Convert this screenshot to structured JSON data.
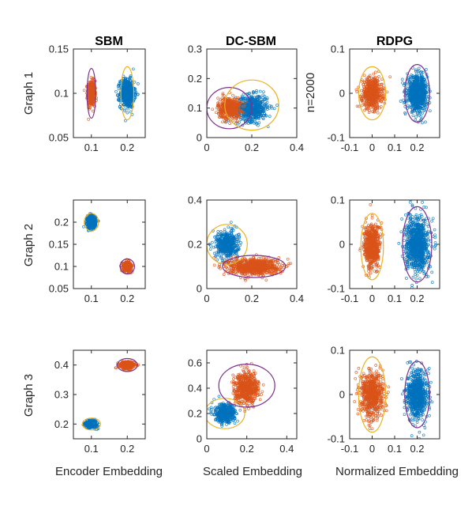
{
  "colors": {
    "blue": "#0072BD",
    "orange": "#D95319",
    "yellow": "#EDB120",
    "purple": "#7E2F8E",
    "axis": "#262626"
  },
  "column_titles": [
    "SBM",
    "DC-SBM",
    "RDPG"
  ],
  "row_labels": [
    "Graph 1",
    "Graph 2",
    "Graph 3"
  ],
  "x_labels": [
    "Encoder Embedding",
    "Scaled Embedding",
    "Normalized Embedding"
  ],
  "annotation": "n=2000",
  "chart_data": [
    {
      "id": "g1-sbm",
      "type": "scatter",
      "row": 0,
      "col": 0,
      "xlim": [
        0.05,
        0.25
      ],
      "ylim": [
        0.05,
        0.15
      ],
      "xticks": [
        0.1,
        0.2
      ],
      "xtick_labels": [
        "0.1",
        "0.2"
      ],
      "yticks": [
        0.05,
        0.1,
        0.15
      ],
      "ytick_labels": [
        "0.05",
        "0.1",
        "0.15"
      ],
      "series": [
        {
          "color": "orange",
          "cx": 0.1,
          "cy": 0.1,
          "sx": 0.005,
          "sy": 0.007,
          "n": 450
        },
        {
          "color": "blue",
          "cx": 0.2,
          "cy": 0.1,
          "sx": 0.01,
          "sy": 0.008,
          "n": 600
        }
      ],
      "ellipses": [
        {
          "color": "purple",
          "cx": 0.1,
          "cy": 0.1,
          "rx": 0.012,
          "ry": 0.028
        },
        {
          "color": "yellow",
          "cx": 0.2,
          "cy": 0.1,
          "rx": 0.018,
          "ry": 0.03
        }
      ]
    },
    {
      "id": "g1-dcsbm",
      "type": "scatter",
      "row": 0,
      "col": 1,
      "xlim": [
        0,
        0.4
      ],
      "ylim": [
        0,
        0.3
      ],
      "xticks": [
        0,
        0.2,
        0.4
      ],
      "xtick_labels": [
        "0",
        "0.2",
        "0.4"
      ],
      "yticks": [
        0,
        0.1,
        0.2,
        0.3
      ],
      "ytick_labels": [
        "0",
        "0.1",
        "0.2",
        "0.3"
      ],
      "series": [
        {
          "color": "blue",
          "cx": 0.2,
          "cy": 0.1,
          "sx": 0.035,
          "sy": 0.022,
          "n": 600
        },
        {
          "color": "orange",
          "cx": 0.1,
          "cy": 0.1,
          "sx": 0.025,
          "sy": 0.018,
          "n": 450
        }
      ],
      "ellipses": [
        {
          "color": "purple",
          "cx": 0.1,
          "cy": 0.1,
          "rx": 0.1,
          "ry": 0.07
        },
        {
          "color": "yellow",
          "cx": 0.2,
          "cy": 0.11,
          "rx": 0.12,
          "ry": 0.085
        }
      ]
    },
    {
      "id": "g1-rdpg",
      "type": "scatter",
      "row": 0,
      "col": 2,
      "xlim": [
        -0.1,
        0.3
      ],
      "ylim": [
        -0.1,
        0.1
      ],
      "xticks": [
        -0.1,
        0,
        0.1,
        0.2
      ],
      "xtick_labels": [
        "-0.1",
        "0",
        "0.1",
        "0.2"
      ],
      "yticks": [
        -0.1,
        0,
        0.1
      ],
      "ytick_labels": [
        "-0.1",
        "0",
        "0.1"
      ],
      "series": [
        {
          "color": "orange",
          "cx": 0,
          "cy": 0,
          "sx": 0.022,
          "sy": 0.017,
          "n": 600
        },
        {
          "color": "blue",
          "cx": 0.2,
          "cy": 0,
          "sx": 0.022,
          "sy": 0.019,
          "n": 800
        }
      ],
      "ellipses": [
        {
          "color": "yellow",
          "cx": 0,
          "cy": 0,
          "rx": 0.06,
          "ry": 0.06
        },
        {
          "color": "purple",
          "cx": 0.2,
          "cy": 0,
          "rx": 0.055,
          "ry": 0.065
        }
      ]
    },
    {
      "id": "g2-sbm",
      "type": "scatter",
      "row": 1,
      "col": 0,
      "xlim": [
        0.05,
        0.25
      ],
      "ylim": [
        0.05,
        0.25
      ],
      "xticks": [
        0.1,
        0.2
      ],
      "xtick_labels": [
        "0.1",
        "0.2"
      ],
      "yticks": [
        0.05,
        0.1,
        0.15,
        0.2
      ],
      "ytick_labels": [
        "0.05",
        "0.1",
        "0.15",
        "0.2"
      ],
      "series": [
        {
          "color": "blue",
          "cx": 0.1,
          "cy": 0.2,
          "sx": 0.006,
          "sy": 0.007,
          "n": 450
        },
        {
          "color": "orange",
          "cx": 0.2,
          "cy": 0.1,
          "sx": 0.006,
          "sy": 0.005,
          "n": 400
        }
      ],
      "ellipses": [
        {
          "color": "yellow",
          "cx": 0.1,
          "cy": 0.2,
          "rx": 0.02,
          "ry": 0.02
        },
        {
          "color": "purple",
          "cx": 0.2,
          "cy": 0.1,
          "rx": 0.02,
          "ry": 0.017
        }
      ]
    },
    {
      "id": "g2-dcsbm",
      "type": "scatter",
      "row": 1,
      "col": 1,
      "xlim": [
        0,
        0.4
      ],
      "ylim": [
        0,
        0.4
      ],
      "xticks": [
        0,
        0.2,
        0.4
      ],
      "xtick_labels": [
        "0",
        "0.2",
        "0.4"
      ],
      "yticks": [
        0,
        0.2,
        0.4
      ],
      "ytick_labels": [
        "0",
        "0.2",
        "0.4"
      ],
      "series": [
        {
          "color": "blue",
          "cx": 0.09,
          "cy": 0.2,
          "sx": 0.025,
          "sy": 0.03,
          "n": 450
        },
        {
          "color": "orange",
          "cx": 0.21,
          "cy": 0.1,
          "sx": 0.055,
          "sy": 0.018,
          "n": 800
        }
      ],
      "ellipses": [
        {
          "color": "yellow",
          "cx": 0.09,
          "cy": 0.2,
          "rx": 0.09,
          "ry": 0.09
        },
        {
          "color": "purple",
          "cx": 0.21,
          "cy": 0.1,
          "rx": 0.14,
          "ry": 0.05
        }
      ]
    },
    {
      "id": "g2-rdpg",
      "type": "scatter",
      "row": 1,
      "col": 2,
      "xlim": [
        -0.1,
        0.3
      ],
      "ylim": [
        -0.1,
        0.1
      ],
      "xticks": [
        -0.1,
        0,
        0.1,
        0.2
      ],
      "xtick_labels": [
        "-0.1",
        "0",
        "0.1",
        "0.2"
      ],
      "yticks": [
        -0.1,
        0,
        0.1
      ],
      "ytick_labels": [
        "-0.1",
        "0",
        "0.1"
      ],
      "series": [
        {
          "color": "orange",
          "cx": 0,
          "cy": -0.005,
          "sx": 0.018,
          "sy": 0.025,
          "n": 600
        },
        {
          "color": "blue",
          "cx": 0.2,
          "cy": 0,
          "sx": 0.025,
          "sy": 0.03,
          "n": 900
        }
      ],
      "ellipses": [
        {
          "color": "yellow",
          "cx": 0,
          "cy": -0.005,
          "rx": 0.05,
          "ry": 0.075
        },
        {
          "color": "purple",
          "cx": 0.2,
          "cy": 0,
          "rx": 0.065,
          "ry": 0.085
        }
      ]
    },
    {
      "id": "g3-sbm",
      "type": "scatter",
      "row": 2,
      "col": 0,
      "xlim": [
        0.05,
        0.25
      ],
      "ylim": [
        0.15,
        0.45
      ],
      "xticks": [
        0.1,
        0.2
      ],
      "xtick_labels": [
        "0.1",
        "0.2"
      ],
      "yticks": [
        0.2,
        0.3,
        0.4
      ],
      "ytick_labels": [
        "0.2",
        "0.3",
        "0.4"
      ],
      "series": [
        {
          "color": "blue",
          "cx": 0.1,
          "cy": 0.2,
          "sx": 0.008,
          "sy": 0.006,
          "n": 400
        },
        {
          "color": "orange",
          "cx": 0.2,
          "cy": 0.4,
          "sx": 0.01,
          "sy": 0.006,
          "n": 400
        }
      ],
      "ellipses": [
        {
          "color": "yellow",
          "cx": 0.1,
          "cy": 0.2,
          "rx": 0.025,
          "ry": 0.02
        },
        {
          "color": "purple",
          "cx": 0.2,
          "cy": 0.4,
          "rx": 0.028,
          "ry": 0.022
        }
      ]
    },
    {
      "id": "g3-dcsbm",
      "type": "scatter",
      "row": 2,
      "col": 1,
      "xlim": [
        0,
        0.45
      ],
      "ylim": [
        0,
        0.7
      ],
      "xticks": [
        0,
        0.2,
        0.4
      ],
      "xtick_labels": [
        "0",
        "0.2",
        "0.4"
      ],
      "yticks": [
        0,
        0.2,
        0.4,
        0.6
      ],
      "ytick_labels": [
        "0",
        "0.2",
        "0.4",
        "0.6"
      ],
      "series": [
        {
          "color": "blue",
          "cx": 0.09,
          "cy": 0.2,
          "sx": 0.025,
          "sy": 0.035,
          "n": 500
        },
        {
          "color": "orange",
          "cx": 0.2,
          "cy": 0.4,
          "sx": 0.03,
          "sy": 0.06,
          "n": 600
        }
      ],
      "ellipses": [
        {
          "color": "yellow",
          "cx": 0.09,
          "cy": 0.2,
          "rx": 0.1,
          "ry": 0.12
        },
        {
          "color": "purple",
          "cx": 0.2,
          "cy": 0.42,
          "rx": 0.14,
          "ry": 0.17
        }
      ]
    },
    {
      "id": "g3-rdpg",
      "type": "scatter",
      "row": 2,
      "col": 2,
      "xlim": [
        -0.1,
        0.3
      ],
      "ylim": [
        -0.1,
        0.1
      ],
      "xticks": [
        -0.1,
        0,
        0.1,
        0.2
      ],
      "xtick_labels": [
        "-0.1",
        "0",
        "0.1",
        "0.2"
      ],
      "yticks": [
        -0.1,
        0,
        0.1
      ],
      "ytick_labels": [
        "-0.1",
        "0",
        "0.1"
      ],
      "series": [
        {
          "color": "orange",
          "cx": 0,
          "cy": 0,
          "sx": 0.025,
          "sy": 0.025,
          "n": 650
        },
        {
          "color": "blue",
          "cx": 0.2,
          "cy": 0,
          "sx": 0.022,
          "sy": 0.025,
          "n": 800
        }
      ],
      "ellipses": [
        {
          "color": "yellow",
          "cx": 0,
          "cy": 0,
          "rx": 0.06,
          "ry": 0.085
        },
        {
          "color": "purple",
          "cx": 0.2,
          "cy": 0,
          "rx": 0.055,
          "ry": 0.075
        }
      ]
    }
  ]
}
